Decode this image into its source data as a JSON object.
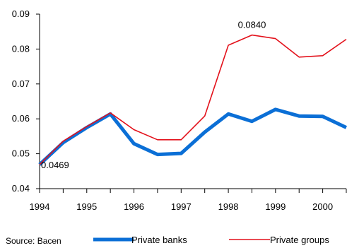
{
  "chart_data": {
    "type": "line",
    "x": [
      1994,
      1994.5,
      1995,
      1995.5,
      1996,
      1996.5,
      1997,
      1997.5,
      1998,
      1998.5,
      1999,
      1999.5,
      2000,
      2000.5
    ],
    "x_tick_labels": [
      "1994",
      "1995",
      "1996",
      "1997",
      "1998",
      "1999",
      "2000"
    ],
    "y_tick_labels": [
      "0.04",
      "0.05",
      "0.06",
      "0.07",
      "0.08",
      "0.09"
    ],
    "ylim": [
      0.04,
      0.09
    ],
    "xlim": [
      1994,
      2000.5
    ],
    "series": [
      {
        "name": "Private banks",
        "color": "#0b6fd6",
        "values": [
          0.0469,
          0.0532,
          0.0575,
          0.0614,
          0.0529,
          0.0498,
          0.0501,
          0.0562,
          0.0614,
          0.0593,
          0.0627,
          0.0608,
          0.0607,
          0.0575
        ]
      },
      {
        "name": "Private groups",
        "color": "#e3111b",
        "values": [
          0.0469,
          0.0536,
          0.0578,
          0.0617,
          0.0569,
          0.054,
          0.054,
          0.0608,
          0.0811,
          0.084,
          0.083,
          0.0777,
          0.0781,
          0.0828
        ]
      }
    ],
    "annotations": [
      {
        "text": "0.0469",
        "x": 1994,
        "y": 0.0469
      },
      {
        "text": "0.0840",
        "x": 1998.5,
        "y": 0.084
      }
    ],
    "grid": false,
    "legend_position": "bottom"
  },
  "source": "Source: Bacen"
}
